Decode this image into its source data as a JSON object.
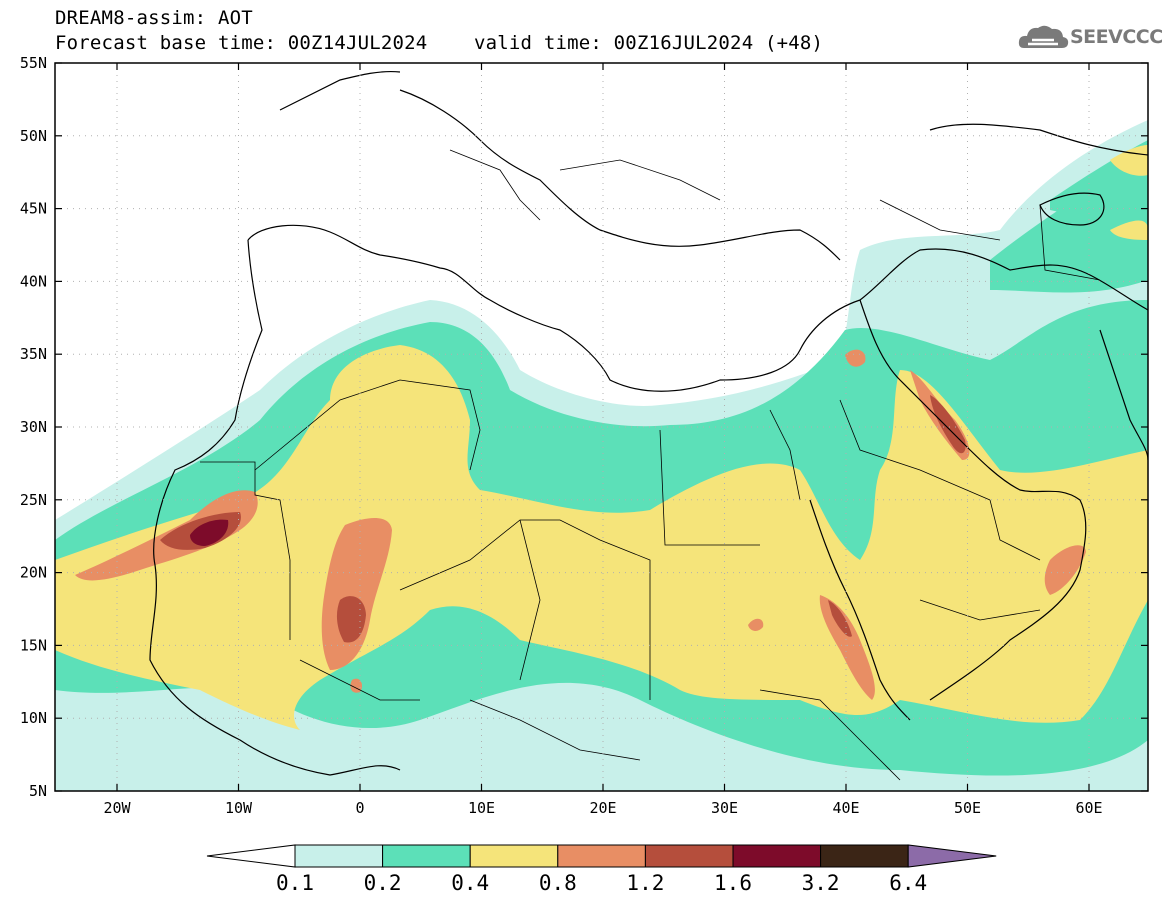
{
  "header": {
    "line1": "DREAM8-assim: AOT",
    "line2": "Forecast base time: 00Z14JUL2024    valid time: 00Z16JUL2024 (+48)"
  },
  "logo": {
    "text": "SEEVCCC",
    "icon": "cloud-logo-icon"
  },
  "map": {
    "lon_ticks": [
      "20W",
      "10W",
      "0",
      "10E",
      "20E",
      "30E",
      "40E",
      "50E",
      "60E"
    ],
    "lat_ticks": [
      "55N",
      "50N",
      "45N",
      "40N",
      "35N",
      "30N",
      "25N",
      "20N",
      "15N",
      "10N",
      "5N"
    ]
  },
  "legend": {
    "labels": [
      "0.1",
      "0.2",
      "0.4",
      "0.8",
      "1.2",
      "1.6",
      "3.2",
      "6.4"
    ],
    "colors": [
      "#ffffff",
      "#c8f0ea",
      "#5ce0b8",
      "#f5e47a",
      "#e88e64",
      "#b54e3c",
      "#7d0b2a",
      "#3b2516",
      "#8c6ba8"
    ]
  }
}
